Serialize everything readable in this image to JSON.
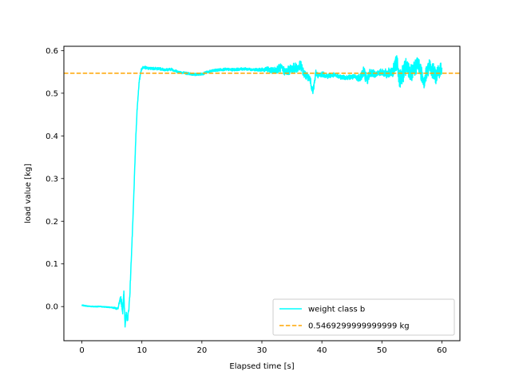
{
  "chart_data": {
    "type": "line",
    "title": "",
    "xlabel": "Elapsed time [s]",
    "ylabel": "load value [kg]",
    "xlim": [
      -3,
      63
    ],
    "ylim": [
      -0.08,
      0.61
    ],
    "xticks": [
      0,
      10,
      20,
      30,
      40,
      50,
      60
    ],
    "yticks": [
      0.0,
      0.1,
      0.2,
      0.3,
      0.4,
      0.5,
      0.6
    ],
    "xtick_labels": [
      "0",
      "10",
      "20",
      "30",
      "40",
      "50",
      "60"
    ],
    "ytick_labels": [
      "0.0",
      "0.1",
      "0.2",
      "0.3",
      "0.4",
      "0.5",
      "0.6"
    ],
    "grid": false,
    "legend_position": "lower-right",
    "series": [
      {
        "name": "weight class b",
        "color": "#00ffff",
        "style": "solid",
        "x": [
          0,
          1,
          2,
          3,
          4,
          5,
          6,
          6.5,
          6.8,
          7,
          7.2,
          7.4,
          7.6,
          7.8,
          8,
          8.2,
          8.5,
          8.8,
          9,
          9.2,
          9.5,
          9.8,
          10,
          10.3,
          10.6,
          11,
          12,
          13,
          14,
          15,
          16,
          17,
          18,
          19,
          20,
          21,
          22,
          23,
          24,
          25,
          26,
          27,
          28,
          29,
          30,
          31,
          32,
          33,
          34,
          35,
          36,
          36.5,
          37,
          38,
          38.5,
          39,
          39.5,
          40,
          41,
          42,
          43,
          44,
          45,
          46,
          46.5,
          47,
          47.5,
          48,
          49,
          50,
          51,
          52,
          52.5,
          53,
          54,
          55,
          56,
          57,
          58,
          59,
          60
        ],
        "y": [
          0.003,
          0.001,
          0.0,
          0.0,
          -0.001,
          -0.002,
          -0.005,
          0.02,
          -0.01,
          0.03,
          -0.04,
          -0.02,
          -0.03,
          -0.01,
          0.03,
          0.1,
          0.2,
          0.32,
          0.4,
          0.46,
          0.52,
          0.55,
          0.558,
          0.562,
          0.56,
          0.558,
          0.558,
          0.557,
          0.555,
          0.556,
          0.55,
          0.548,
          0.545,
          0.544,
          0.545,
          0.55,
          0.553,
          0.555,
          0.556,
          0.555,
          0.556,
          0.557,
          0.556,
          0.555,
          0.555,
          0.556,
          0.552,
          0.56,
          0.55,
          0.558,
          0.56,
          0.565,
          0.545,
          0.535,
          0.5,
          0.548,
          0.54,
          0.545,
          0.54,
          0.543,
          0.538,
          0.537,
          0.538,
          0.536,
          0.54,
          0.552,
          0.53,
          0.548,
          0.545,
          0.55,
          0.545,
          0.555,
          0.575,
          0.53,
          0.56,
          0.545,
          0.57,
          0.53,
          0.565,
          0.54,
          0.56
        ],
        "band": [
          0.001,
          0.001,
          0.001,
          0.001,
          0.001,
          0.001,
          0.003,
          0.008,
          0.008,
          0.01,
          0.008,
          0.008,
          0.008,
          0.006,
          0.006,
          0.004,
          0.004,
          0.004,
          0.004,
          0.004,
          0.004,
          0.004,
          0.003,
          0.003,
          0.003,
          0.003,
          0.003,
          0.003,
          0.003,
          0.003,
          0.003,
          0.003,
          0.003,
          0.003,
          0.003,
          0.003,
          0.003,
          0.003,
          0.003,
          0.003,
          0.003,
          0.003,
          0.003,
          0.003,
          0.004,
          0.006,
          0.008,
          0.01,
          0.01,
          0.012,
          0.012,
          0.012,
          0.01,
          0.008,
          0.008,
          0.008,
          0.006,
          0.006,
          0.006,
          0.005,
          0.005,
          0.005,
          0.006,
          0.008,
          0.012,
          0.014,
          0.014,
          0.01,
          0.008,
          0.008,
          0.012,
          0.016,
          0.02,
          0.022,
          0.022,
          0.02,
          0.018,
          0.02,
          0.02,
          0.018,
          0.016
        ]
      },
      {
        "name": "0.5469299999999999 kg",
        "color": "#ffa500",
        "style": "dashed",
        "x": [
          -3,
          63
        ],
        "y": [
          0.5469299999999999,
          0.5469299999999999
        ]
      }
    ]
  }
}
